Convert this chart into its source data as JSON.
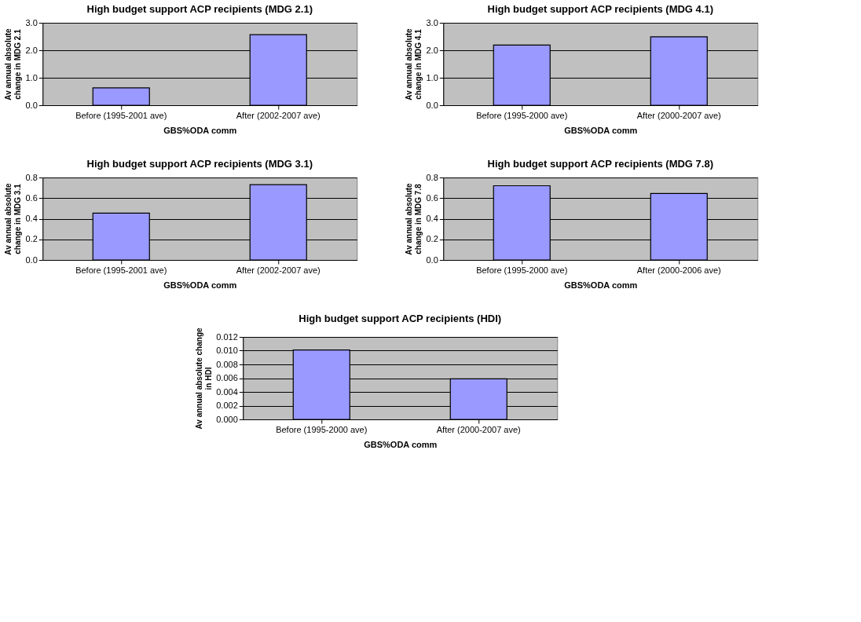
{
  "chart_data": [
    {
      "type": "bar",
      "title": "High budget support ACP recipients (MDG 2.1)",
      "xlabel": "GBS%ODA comm",
      "ylabel": "Av annual absolute\nchange in MDG 2.1",
      "categories": [
        "Before (1995-2001 ave)",
        "After (2002-2007 ave)"
      ],
      "values": [
        0.63,
        2.57
      ],
      "color": "#9999ff",
      "ylim": [
        0,
        3
      ],
      "yticks": [
        {
          "value": 0,
          "label": "0.0"
        },
        {
          "value": 1,
          "label": "1.0"
        },
        {
          "value": 2,
          "label": "2.0"
        },
        {
          "value": 3,
          "label": "3.0"
        }
      ],
      "grid": "y",
      "legend": false
    },
    {
      "type": "bar",
      "title": "High budget support ACP recipients (MDG 4.1)",
      "xlabel": "GBS%ODA comm",
      "ylabel": "Av annual absolute\nchange in MDG 4.1",
      "categories": [
        "Before (1995-2000 ave)",
        "After (2000-2007 ave)"
      ],
      "values": [
        2.19,
        2.49
      ],
      "color": "#9999ff",
      "ylim": [
        0,
        3
      ],
      "yticks": [
        {
          "value": 0,
          "label": "0.0"
        },
        {
          "value": 1,
          "label": "1.0"
        },
        {
          "value": 2,
          "label": "2.0"
        },
        {
          "value": 3,
          "label": "3.0"
        }
      ],
      "grid": "y",
      "legend": false
    },
    {
      "type": "bar",
      "title": "High budget support ACP recipients (MDG 3.1)",
      "xlabel": "GBS%ODA comm",
      "ylabel": "Av annual absolute\nchange in MDG 3.1",
      "categories": [
        "Before (1995-2001 ave)",
        "After (2002-2007 ave)"
      ],
      "values": [
        0.455,
        0.73
      ],
      "color": "#9999ff",
      "ylim": [
        0,
        0.8
      ],
      "yticks": [
        {
          "value": 0,
          "label": "0.0"
        },
        0.2,
        0.4,
        0.6,
        0.8
      ],
      "grid": "y",
      "legend": false
    },
    {
      "type": "bar",
      "title": "High budget support ACP recipients (MDG 7.8)",
      "xlabel": "GBS%ODA comm",
      "ylabel": "Av annual absolute\nchange in MDG 7.8",
      "categories": [
        "Before (1995-2000 ave)",
        "After (2000-2006 ave)"
      ],
      "values": [
        0.72,
        0.645
      ],
      "color": "#9999ff",
      "ylim": [
        0,
        0.8
      ],
      "yticks": [
        {
          "value": 0,
          "label": "0.0"
        },
        0.2,
        0.4,
        0.6,
        0.8
      ],
      "grid": "y",
      "legend": false
    },
    {
      "type": "bar",
      "title": "High budget support ACP recipients (HDI)",
      "xlabel": "GBS%ODA comm",
      "ylabel": "Av annual absolute change\nin HDI",
      "categories": [
        "Before (1995-2000 ave)",
        "After (2000-2007 ave)"
      ],
      "values": [
        0.0101,
        0.0059
      ],
      "color": "#9999ff",
      "ylim": [
        0,
        0.012
      ],
      "yticks": [
        {
          "value": 0,
          "label": "0.000"
        },
        {
          "value": 0.002,
          "label": "0.002"
        },
        {
          "value": 0.004,
          "label": "0.004"
        },
        {
          "value": 0.006,
          "label": "0.006"
        },
        {
          "value": 0.008,
          "label": "0.008"
        },
        {
          "value": 0.01,
          "label": "0.010"
        },
        {
          "value": 0.012,
          "label": "0.012"
        }
      ],
      "grid": "y",
      "legend": false
    }
  ]
}
